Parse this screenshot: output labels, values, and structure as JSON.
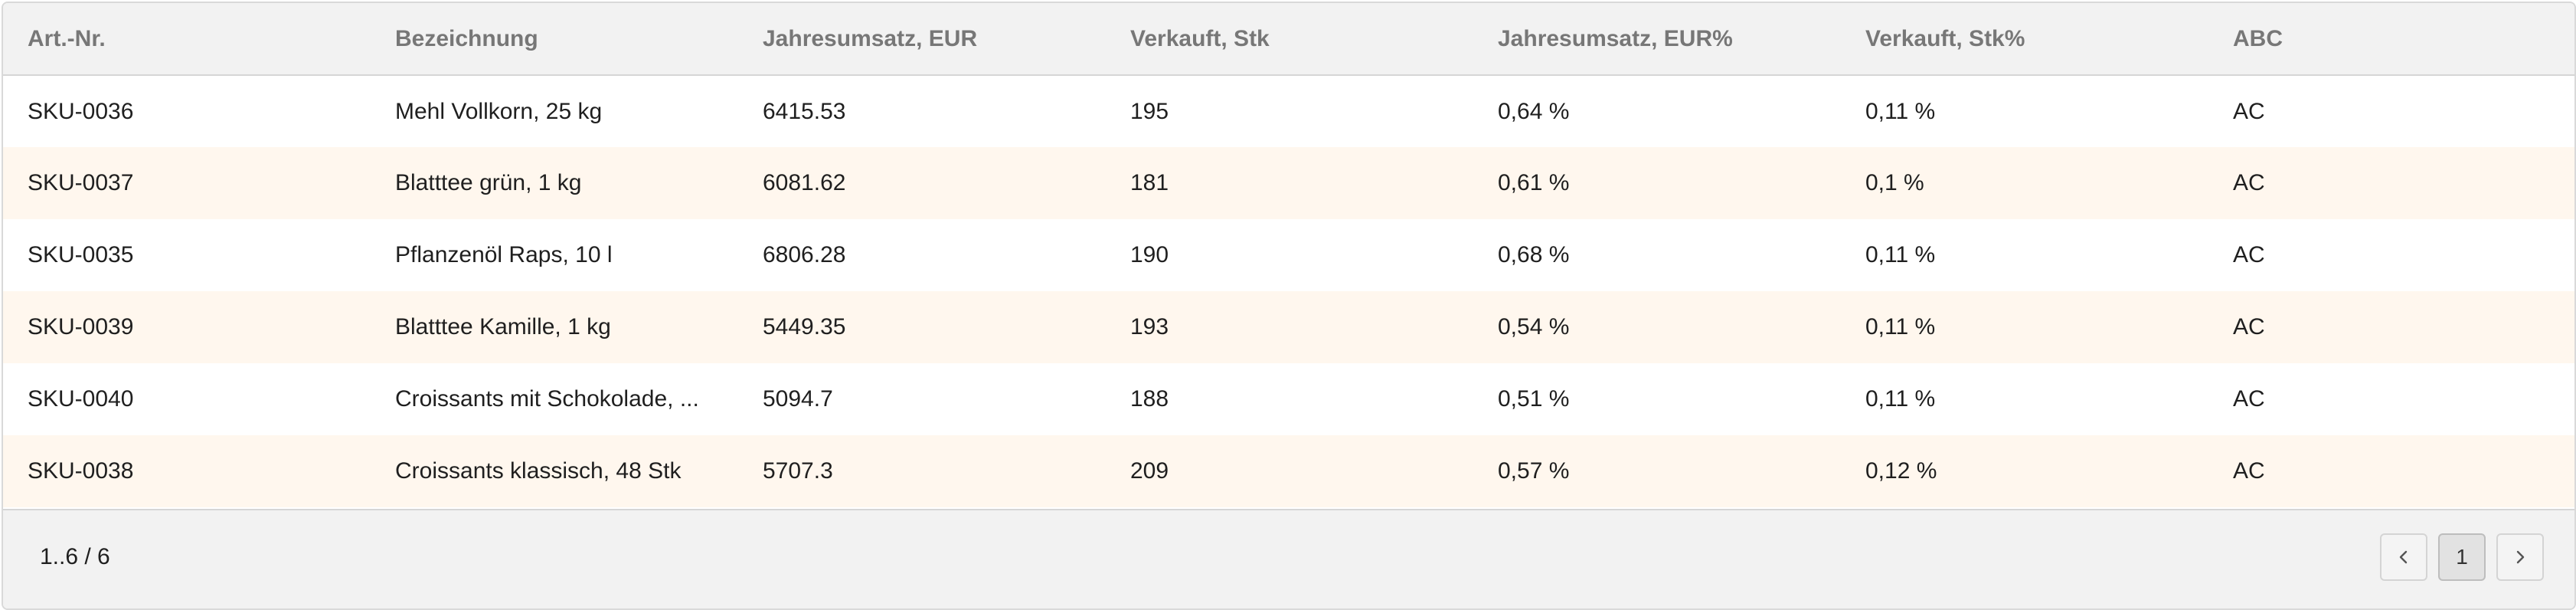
{
  "table": {
    "columns": [
      "Art.-Nr.",
      "Bezeichnung",
      "Jahresumsatz, EUR",
      "Verkauft, Stk",
      "Jahresumsatz, EUR%",
      "Verkauft, Stk%",
      "ABC"
    ],
    "rows": [
      [
        "SKU-0036",
        "Mehl Vollkorn, 25 kg",
        "6415.53",
        "195",
        "0,64 %",
        "0,11 %",
        "AC"
      ],
      [
        "SKU-0037",
        "Blatttee grün, 1 kg",
        "6081.62",
        "181",
        "0,61 %",
        "0,1 %",
        "AC"
      ],
      [
        "SKU-0035",
        "Pflanzenöl Raps, 10 l",
        "6806.28",
        "190",
        "0,68 %",
        "0,11 %",
        "AC"
      ],
      [
        "SKU-0039",
        "Blatttee Kamille, 1 kg",
        "5449.35",
        "193",
        "0,54 %",
        "0,11 %",
        "AC"
      ],
      [
        "SKU-0040",
        "Croissants mit Schokolade, ...",
        "5094.7",
        "188",
        "0,51 %",
        "0,11 %",
        "AC"
      ],
      [
        "SKU-0038",
        "Croissants klassisch, 48 Stk",
        "5707.3",
        "209",
        "0,57 %",
        "0,12 %",
        "AC"
      ]
    ]
  },
  "footer": {
    "range_label": "1..6 / 6",
    "current_page": "1",
    "prev_icon": "chevron-left-icon",
    "next_icon": "chevron-right-icon"
  }
}
